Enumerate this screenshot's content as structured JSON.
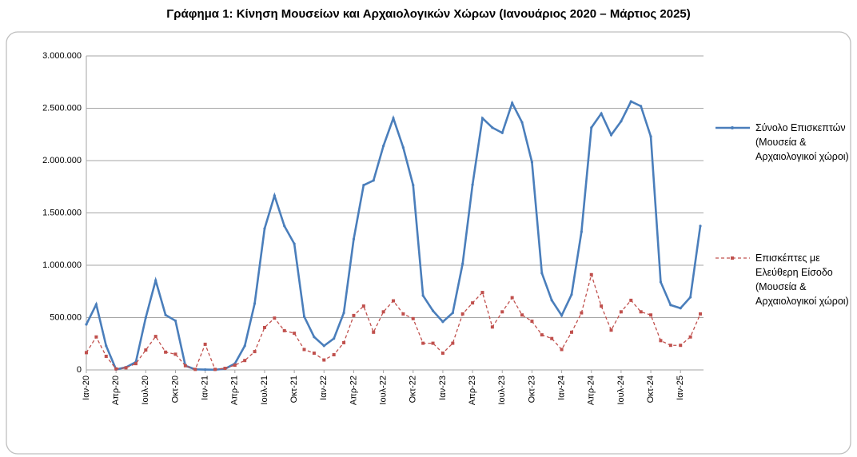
{
  "chart_data": {
    "type": "line",
    "title": "Γράφημα 1: Κίνηση Μουσείων και Αρχαιολογικών Χώρων (Ιανουάριος 2020 – Μάρτιος 2025)",
    "categories": [
      "Ιαν-20",
      null,
      null,
      "Απρ-20",
      null,
      null,
      "Ιουλ-20",
      null,
      null,
      "Οκτ-20",
      null,
      null,
      "Ιαν-21",
      null,
      null,
      "Απρ-21",
      null,
      null,
      "Ιουλ-21",
      null,
      null,
      "Οκτ-21",
      null,
      null,
      "Ιαν-22",
      null,
      null,
      "Απρ-22",
      null,
      null,
      "Ιουλ-22",
      null,
      null,
      "Οκτ-22",
      null,
      null,
      "Ιαν-23",
      null,
      null,
      "Απρ-23",
      null,
      null,
      "Ιουλ-23",
      null,
      null,
      "Οκτ-23",
      null,
      null,
      "Ιαν-24",
      null,
      null,
      "Απρ-24",
      null,
      null,
      "Ιουλ-24",
      null,
      null,
      "Οκτ-24",
      null,
      null,
      "Ιαν-25",
      null,
      null
    ],
    "series": [
      {
        "name": "Σύνολο Επισκεπτών (Μουσεία & Αρχαιολογικοί χώροι)",
        "color": "#4a7ebb",
        "dash": false,
        "values": [
          435000,
          626000,
          230000,
          5000,
          25000,
          75000,
          500000,
          855000,
          525000,
          470000,
          40000,
          5000,
          3000,
          2000,
          10000,
          60000,
          230000,
          635000,
          1350000,
          1665000,
          1375000,
          1205000,
          510000,
          315000,
          230000,
          300000,
          545000,
          1250000,
          1765000,
          1810000,
          2140000,
          2405000,
          2125000,
          1765000,
          710000,
          565000,
          460000,
          545000,
          1015000,
          1770000,
          2405000,
          2315000,
          2265000,
          2550000,
          2365000,
          1985000,
          925000,
          665000,
          520000,
          720000,
          1320000,
          2315000,
          2450000,
          2245000,
          2375000,
          2565000,
          2520000,
          2230000,
          840000,
          620000,
          590000,
          695000,
          1375000
        ]
      },
      {
        "name": "Επισκέπτες με Ελεύθερη Είσοδο (Μουσεία & Αρχαιολογικοί χώροι)",
        "color": "#c0504d",
        "dash": true,
        "values": [
          165000,
          315000,
          130000,
          10000,
          20000,
          60000,
          190000,
          320000,
          170000,
          150000,
          40000,
          5000,
          245000,
          5000,
          15000,
          45000,
          90000,
          175000,
          405000,
          495000,
          375000,
          350000,
          195000,
          160000,
          95000,
          145000,
          260000,
          520000,
          610000,
          360000,
          555000,
          660000,
          535000,
          490000,
          255000,
          255000,
          160000,
          255000,
          535000,
          640000,
          740000,
          410000,
          555000,
          690000,
          525000,
          465000,
          335000,
          300000,
          195000,
          360000,
          545000,
          910000,
          610000,
          380000,
          555000,
          665000,
          555000,
          525000,
          280000,
          235000,
          235000,
          315000,
          535000
        ]
      }
    ],
    "ylim": [
      0,
      3000000
    ],
    "yticks": [
      0,
      {
        "value": 500000,
        "label": "500.000"
      },
      {
        "value": 1000000,
        "label": "1.000.000"
      },
      {
        "value": 1500000,
        "label": "1.500.000"
      },
      {
        "value": 2000000,
        "label": "2.000.000"
      },
      {
        "value": 2500000,
        "label": "2.500.000"
      },
      {
        "value": 3000000,
        "label": "3.000.000"
      }
    ],
    "grid": true,
    "legend": "right"
  }
}
